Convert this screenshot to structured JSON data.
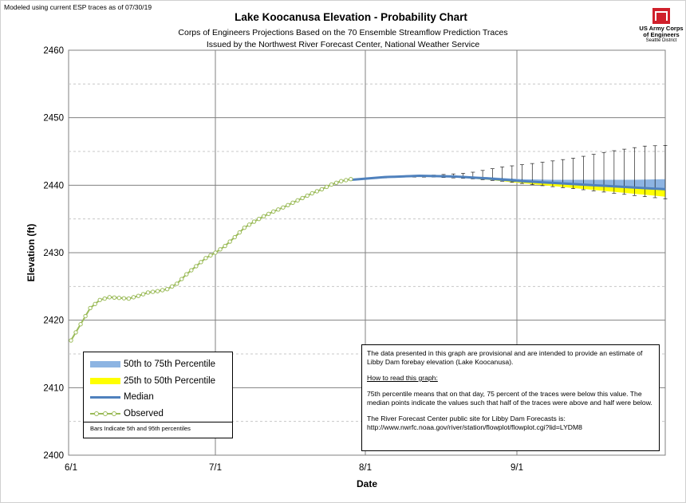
{
  "header": {
    "model_note": "Modeled using current ESP traces as of 07/30/19",
    "title": "Lake Koocanusa Elevation - Probability Chart",
    "subtitle_line1": "Corps of Engineers Projections Based on the 70 Ensemble Streamflow Prediction Traces",
    "subtitle_line2": "Issued by the Northwest River Forecast Center, National Weather Service"
  },
  "logo": {
    "line1": "US Army Corps",
    "line2": "of Engineers",
    "line3": "Seattle District",
    "color": "#d0202b"
  },
  "legend": {
    "p50_75": "50th to 75th Percentile",
    "p25_50": "25th to 50th Percentile",
    "median": "Median",
    "observed": "Observed",
    "note": "Bars Indicate 5th and 95th percentiles"
  },
  "info": {
    "para1": "The data presented in this graph are provisional  and are intended to provide  an estimate of Libby Dam forebay elevation (Lake Koocanusa).",
    "heading": "How to read this graph:",
    "para2": "75th percentile means that on that day, 75 percent of the traces were below this value.  The median points indicate the values such that half of  the traces were above and half were  below.",
    "para3a": "The River Forecast Center public site for Libby Dam Forecasts is:",
    "para3b": "http://www.nwrfc.noaa.gov/river/station/flowplot/flowplot.cgi?lid=LYDM8"
  },
  "chart_data": {
    "type": "line",
    "title": "Lake Koocanusa Elevation - Probability Chart",
    "xlabel": "Date",
    "ylabel": "Elevation (ft)",
    "ylim": [
      2400,
      2460
    ],
    "yticks": [
      2400,
      2410,
      2420,
      2430,
      2440,
      2450,
      2460
    ],
    "xticks": [
      "6/1",
      "7/1",
      "8/1",
      "9/1"
    ],
    "x_start": "6/1",
    "x_end": "9/30",
    "grid": true,
    "colors": {
      "p50_75": "#8db4e2",
      "p25_50": "#ffff00",
      "median": "#4f81bd",
      "observed_line": "#9bbb59",
      "observed_marker": "#ffffff"
    },
    "observed": {
      "dates": [
        "6/1",
        "6/3",
        "6/5",
        "6/7",
        "6/9",
        "6/11",
        "6/13",
        "6/15",
        "6/17",
        "6/19",
        "6/21",
        "6/23",
        "6/25",
        "6/27",
        "6/29",
        "7/1",
        "7/3",
        "7/5",
        "7/7",
        "7/9",
        "7/11",
        "7/13",
        "7/15",
        "7/17",
        "7/19",
        "7/21",
        "7/23",
        "7/25",
        "7/27",
        "7/29"
      ],
      "values": [
        2417.0,
        2419.4,
        2421.8,
        2423.0,
        2423.4,
        2423.3,
        2423.2,
        2423.6,
        2424.1,
        2424.3,
        2424.6,
        2425.4,
        2426.8,
        2428.0,
        2429.2,
        2430.0,
        2431.0,
        2432.3,
        2433.7,
        2434.6,
        2435.4,
        2436.1,
        2436.7,
        2437.4,
        2438.1,
        2438.8,
        2439.4,
        2440.1,
        2440.6,
        2440.9
      ]
    },
    "median": {
      "dates": [
        "7/29",
        "8/5",
        "8/12",
        "8/19",
        "8/26",
        "9/2",
        "9/9",
        "9/16",
        "9/23",
        "9/30"
      ],
      "values": [
        2440.8,
        2441.2,
        2441.4,
        2441.3,
        2441.0,
        2440.6,
        2440.3,
        2440.0,
        2439.7,
        2439.4
      ]
    },
    "p25": {
      "dates": [
        "7/29",
        "8/5",
        "8/12",
        "8/19",
        "8/26",
        "9/2",
        "9/9",
        "9/16",
        "9/23",
        "9/30"
      ],
      "values": [
        2440.8,
        2441.2,
        2441.3,
        2441.2,
        2440.8,
        2440.3,
        2439.8,
        2439.3,
        2438.8,
        2438.3
      ]
    },
    "p75": {
      "dates": [
        "7/29",
        "8/5",
        "8/12",
        "8/19",
        "8/26",
        "9/2",
        "9/9",
        "9/16",
        "9/23",
        "9/30"
      ],
      "values": [
        2440.8,
        2441.2,
        2441.4,
        2441.4,
        2441.2,
        2440.9,
        2440.8,
        2440.8,
        2440.8,
        2440.9
      ]
    },
    "p5": {
      "dates": [
        "8/1",
        "8/8",
        "8/15",
        "8/22",
        "8/29",
        "9/5",
        "9/12",
        "9/19",
        "9/26",
        "9/30"
      ],
      "values": [
        2440.9,
        2441.2,
        2441.2,
        2441.0,
        2440.6,
        2440.0,
        2439.5,
        2438.9,
        2438.3,
        2438.0
      ]
    },
    "p95": {
      "dates": [
        "8/1",
        "8/8",
        "8/15",
        "8/22",
        "8/29",
        "9/5",
        "9/12",
        "9/19",
        "9/26",
        "9/30"
      ],
      "values": [
        2441.0,
        2441.4,
        2441.5,
        2441.8,
        2442.7,
        2443.3,
        2444.0,
        2445.0,
        2445.8,
        2445.9
      ]
    }
  }
}
